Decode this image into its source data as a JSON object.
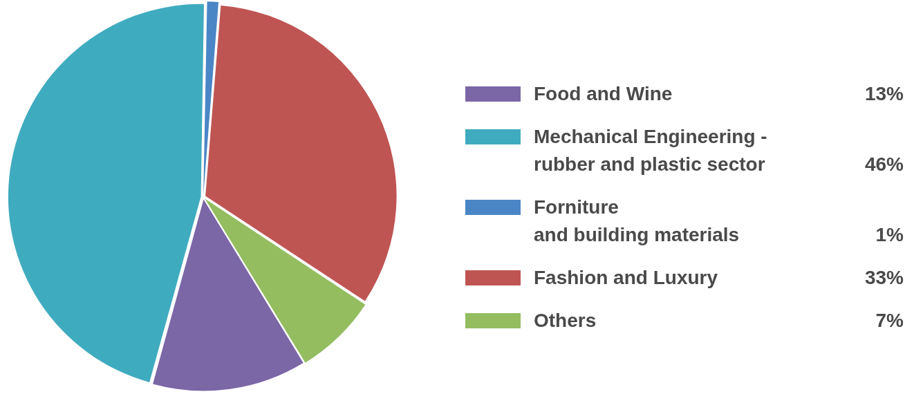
{
  "chart_data": {
    "type": "pie",
    "categories": [
      "Food and Wine",
      "Mechanical Engineering -\nrubber and plastic sector",
      "Forniture\nand building materials",
      "Fashion and Luxury",
      "Others"
    ],
    "values": [
      13,
      46,
      1,
      33,
      7
    ],
    "value_labels": [
      "13%",
      "46%",
      "1%",
      "33%",
      "7%"
    ],
    "colors": [
      "#7b66a6",
      "#3fabbf",
      "#4a86c6",
      "#bf5553",
      "#93bd5f"
    ],
    "legend": "right"
  }
}
